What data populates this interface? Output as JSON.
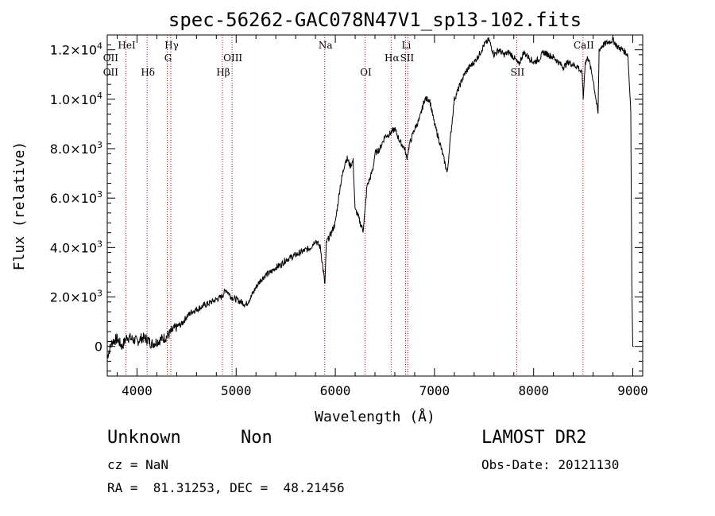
{
  "chart_data": {
    "type": "line",
    "title": "spec-56262-GAC078N47V1_sp13-102.fits",
    "xlabel": "Wavelength (Å)",
    "ylabel": "Flux (relative)",
    "xlim": [
      3700,
      9100
    ],
    "ylim": [
      -1200,
      12600
    ],
    "x_ticks": [
      4000,
      5000,
      6000,
      7000,
      8000,
      9000
    ],
    "x_tick_labels": [
      "4000",
      "5000",
      "6000",
      "7000",
      "8000",
      "9000"
    ],
    "y_ticks": [
      0,
      2000,
      4000,
      6000,
      8000,
      10000,
      12000
    ],
    "y_tick_labels": [
      {
        "mant": "0",
        "exp": ""
      },
      {
        "mant": "2.0×10",
        "exp": "3"
      },
      {
        "mant": "4.0×10",
        "exp": "3"
      },
      {
        "mant": "6.0×10",
        "exp": "3"
      },
      {
        "mant": "8.0×10",
        "exp": "3"
      },
      {
        "mant": "1.0×10",
        "exp": "4"
      },
      {
        "mant": "1.2×10",
        "exp": "4"
      }
    ],
    "grid": false,
    "line_color": "#000000",
    "marker_color": "#cc0000",
    "lines": [
      {
        "label": "OII",
        "x": 3727,
        "row": 2
      },
      {
        "label": "OII",
        "x": 3727,
        "row": 3
      },
      {
        "label": "HeI",
        "x": 3889,
        "row": 1
      },
      {
        "label": "Hδ",
        "x": 4102,
        "row": 3
      },
      {
        "label": "Hγ",
        "x": 4341,
        "row": 1
      },
      {
        "label": "G",
        "x": 4305,
        "row": 2
      },
      {
        "label": "Hβ",
        "x": 4861,
        "row": 3
      },
      {
        "label": "OIII",
        "x": 4959,
        "row": 2
      },
      {
        "label": "Na",
        "x": 5893,
        "row": 1
      },
      {
        "label": "OI",
        "x": 6300,
        "row": 3
      },
      {
        "label": "Hα",
        "x": 6563,
        "row": 2
      },
      {
        "label": "SII",
        "x": 6716,
        "row": 2
      },
      {
        "label": "Li",
        "x": 6708,
        "row": 1
      },
      {
        "label": "SII",
        "x": 7829,
        "row": 3
      },
      {
        "label": "CaII",
        "x": 8498,
        "row": 1
      }
    ],
    "marker_lines": [
      3889,
      4102,
      4305,
      4341,
      4861,
      4959,
      5893,
      6300,
      6563,
      6708,
      6731,
      7829,
      8498
    ],
    "series": [
      {
        "x": [
          3700,
          3750,
          3800,
          3850,
          3900,
          3950,
          4000,
          4050,
          4100,
          4150,
          4200,
          4250,
          4300,
          4350,
          4400,
          4450,
          4500,
          4550,
          4600,
          4650,
          4700,
          4750,
          4800,
          4850,
          4900,
          4950,
          5000,
          5050,
          5100,
          5150,
          5200,
          5250,
          5300,
          5350,
          5400,
          5450,
          5500,
          5550,
          5600,
          5650,
          5700,
          5750,
          5800,
          5850,
          5880,
          5895,
          5910,
          5950,
          6000,
          6050,
          6100,
          6120,
          6150,
          6180,
          6200,
          6220,
          6250,
          6280,
          6300,
          6320,
          6350,
          6380,
          6400,
          6450,
          6500,
          6550,
          6600,
          6650,
          6700,
          6720,
          6750,
          6800,
          6850,
          6900,
          6950,
          7000,
          7050,
          7100,
          7130,
          7150,
          7200,
          7250,
          7300,
          7350,
          7400,
          7450,
          7500,
          7550,
          7600,
          7650,
          7700,
          7750,
          7800,
          7850,
          7900,
          7950,
          8000,
          8050,
          8100,
          8150,
          8200,
          8250,
          8300,
          8350,
          8400,
          8450,
          8490,
          8500,
          8520,
          8550,
          8600,
          8650,
          8660,
          8700,
          8750,
          8800,
          8850,
          8900,
          8950,
          8980,
          8990,
          9000,
          9010
        ],
        "y": [
          -400,
          200,
          300,
          0,
          400,
          300,
          200,
          350,
          300,
          100,
          200,
          300,
          400,
          600,
          800,
          900,
          1200,
          1400,
          1500,
          1600,
          1700,
          1800,
          1900,
          2000,
          2300,
          2000,
          1900,
          1800,
          1700,
          2000,
          2400,
          2700,
          2900,
          3000,
          3200,
          3300,
          3500,
          3600,
          3700,
          3800,
          3900,
          4000,
          4300,
          4000,
          3000,
          2500,
          4200,
          4500,
          5000,
          6500,
          7500,
          7600,
          7300,
          7500,
          5500,
          5400,
          5000,
          4700,
          5500,
          6500,
          6800,
          7200,
          7800,
          8000,
          8500,
          8600,
          8800,
          8300,
          8000,
          7600,
          8200,
          8800,
          9200,
          10000,
          10000,
          9000,
          8300,
          7500,
          7000,
          8000,
          10000,
          10500,
          11000,
          11300,
          11500,
          11800,
          12200,
          12400,
          11800,
          12000,
          11800,
          11900,
          11700,
          11400,
          11900,
          11700,
          11500,
          11600,
          11900,
          11800,
          11700,
          11500,
          11300,
          11500,
          11400,
          11300,
          11000,
          10000,
          11500,
          11700,
          10800,
          9400,
          12000,
          12200,
          12300,
          12400,
          12100,
          12000,
          11800,
          9500,
          2500,
          0,
          0
        ]
      }
    ]
  },
  "footer": {
    "object_name": "Unknown",
    "object_class": "Non",
    "cz": "cz = NaN",
    "coords": "RA =  81.31253, DEC =  48.21456",
    "survey": "LAMOST DR2",
    "obs_date": "Obs-Date: 20121130"
  }
}
